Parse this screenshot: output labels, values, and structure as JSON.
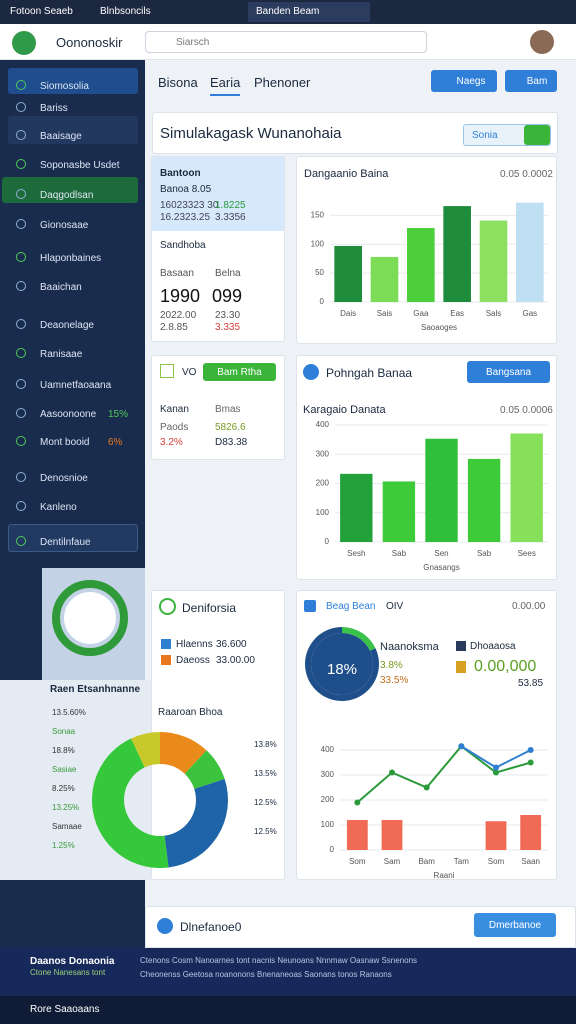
{
  "browser": {
    "tabs": [
      "Fotoon Seaeb",
      "Blnbsoncils",
      "Banden Beam"
    ]
  },
  "header": {
    "brand": "Oononoskir",
    "search": "Siarsch"
  },
  "sidebar": {
    "items": [
      {
        "label": "Siomosolia"
      },
      {
        "label": "Bariss"
      },
      {
        "label": "Baaisage"
      },
      {
        "label": "Soponasbe Usdet"
      },
      {
        "label": "Daqgodlsan"
      },
      {
        "label": "Gionosaae"
      },
      {
        "label": "Hlaponbaines"
      },
      {
        "label": "Baaichan"
      },
      {
        "label": "Deaonelage"
      },
      {
        "label": "Ranisaae"
      },
      {
        "label": "Uamnetfaoaana"
      },
      {
        "label": "Aasoonoone",
        "badge": "15%"
      },
      {
        "label": "Mont booid",
        "badge": "6%"
      },
      {
        "label": "Denosnioe"
      },
      {
        "label": "Kanleno"
      },
      {
        "label": "Dentilnfaue"
      }
    ]
  },
  "main": {
    "tabs": [
      "Bisona",
      "Earia",
      "Phenoner"
    ],
    "buttons": [
      "Naegs",
      "Bam"
    ],
    "title": "Simulakagask Wunanohaia",
    "title_button": "Sonia",
    "summary_card": {
      "title": "Bantoon",
      "subtitle": "Banoa 8.05",
      "rows": [
        [
          "16023323 30",
          "1.8225"
        ],
        [
          "16.2323.25",
          "3.3356"
        ]
      ],
      "section": "Sandhoba",
      "stat_labels": [
        "Basaan",
        "Belna"
      ],
      "stats": [
        "1990",
        "099"
      ],
      "sub": [
        [
          "2022.00",
          "23.30"
        ],
        [
          "2.8.85",
          "3.335"
        ]
      ]
    },
    "vo_card": {
      "title": "VO",
      "button": "Bam Rtha",
      "labels": [
        "Kanan",
        "Bmas"
      ],
      "rows": [
        [
          "Paods",
          "5826.6"
        ],
        [
          "3.2%",
          "D83.38"
        ]
      ]
    },
    "bar_chart_1": {
      "type": "bar",
      "title": "Dangaanio Baina",
      "note": "0.05 0.0002",
      "categories": [
        "Dais",
        "Sais",
        "Gaa",
        "Eas",
        "Sals",
        "Gas"
      ],
      "values": [
        97,
        78,
        128,
        166,
        141,
        172
      ],
      "colors": [
        "#1e8c3a",
        "#7ddc55",
        "#4ccf3a",
        "#1e8c3a",
        "#8ee060",
        "#bfdff3"
      ],
      "ylim": [
        0,
        180
      ],
      "yticks": [
        0,
        50,
        100,
        150
      ],
      "xlabel": "Saoaoges"
    },
    "chart_card_2": {
      "title": "Pohngah Banaa",
      "button": "Bangsana"
    },
    "bar_chart_2": {
      "type": "bar",
      "title": "Karagaio Danata",
      "note": "0.05 0.0006",
      "categories": [
        "Sesh",
        "Sab",
        "Sen",
        "Sab",
        "Sees"
      ],
      "values": [
        233,
        207,
        353,
        284,
        371
      ],
      "colors": [
        "#22a03a",
        "#3ecb3a",
        "#2fbf3a",
        "#3ecb3a",
        "#86e05a"
      ],
      "ylim": [
        0,
        400
      ],
      "yticks": [
        0,
        100,
        200,
        300,
        400
      ],
      "xlabel": "Gnasangs"
    },
    "legend_card": {
      "title": "Deniforsia",
      "items": [
        {
          "name": "Hlaenns",
          "value": "36.600",
          "color": "#2f7fd0"
        },
        {
          "name": "Daeoss",
          "value": "33.00.00",
          "color": "#e8771e"
        }
      ],
      "subtitle": "Raaroan Bhoa"
    },
    "donut_chart": {
      "type": "pie",
      "title": "Raen Etsanhnanne",
      "values": [
        12,
        8,
        28,
        45,
        7
      ],
      "colors": [
        "#ea8a1a",
        "#3cc23c",
        "#1f63a8",
        "#34c83a",
        "#c8c82a"
      ],
      "left_labels": [
        "13.5.60%",
        "Sonaa",
        "18.8%",
        "Sasiae",
        "8.25%",
        "13.25%",
        "Samaae",
        "1.25%"
      ],
      "right_labels": [
        "13.8%",
        "13.5%",
        "12.5%",
        "12.5%"
      ]
    },
    "stats_card": {
      "title": "Beag Bean",
      "tag": "OIV",
      "note": "0.00.00",
      "donut": {
        "type": "pie",
        "values": [
          18,
          82
        ],
        "colors": [
          "#3ac24a",
          "#1f4f8a"
        ],
        "center_label": "18%"
      },
      "label": "Naanoksma",
      "legend": "Dhoaaosa",
      "pct": [
        "3.8%",
        "33.5%"
      ],
      "big_value": "0.00,000",
      "small_value": "53.85"
    },
    "line_chart": {
      "type": "line",
      "categories": [
        "Som",
        "Sam",
        "Bam",
        "Tam",
        "Som",
        "Saan"
      ],
      "series": [
        {
          "color": "#2a9a3a",
          "values": [
            190,
            310,
            250,
            415,
            310,
            350
          ]
        },
        {
          "color": "#2f7fd0",
          "values": [
            null,
            null,
            null,
            415,
            330,
            400
          ]
        }
      ],
      "bars": {
        "color": "#f06a55",
        "values": [
          120,
          120,
          null,
          null,
          115,
          140
        ]
      },
      "ylim": [
        0,
        440
      ],
      "yticks": [
        0,
        100,
        200,
        300,
        400
      ],
      "xlabel": "Raani"
    },
    "bottom_card": {
      "title": "Dlnefanoe0",
      "button": "Dmerbanoe"
    }
  },
  "footer": {
    "title": "Daanos Donaonia",
    "subtitle": "Ctone Nanesans tont",
    "text": "Ctenons Cosm Nanoarnes tont nacnis Neunoans Nnnmaw Oasnaw Ssnenons",
    "text2": "Cheonenss Geetosa noanonons Bnenaneoas Saonans tonos Ranaons",
    "bottom": "Rore Saaoaans"
  }
}
